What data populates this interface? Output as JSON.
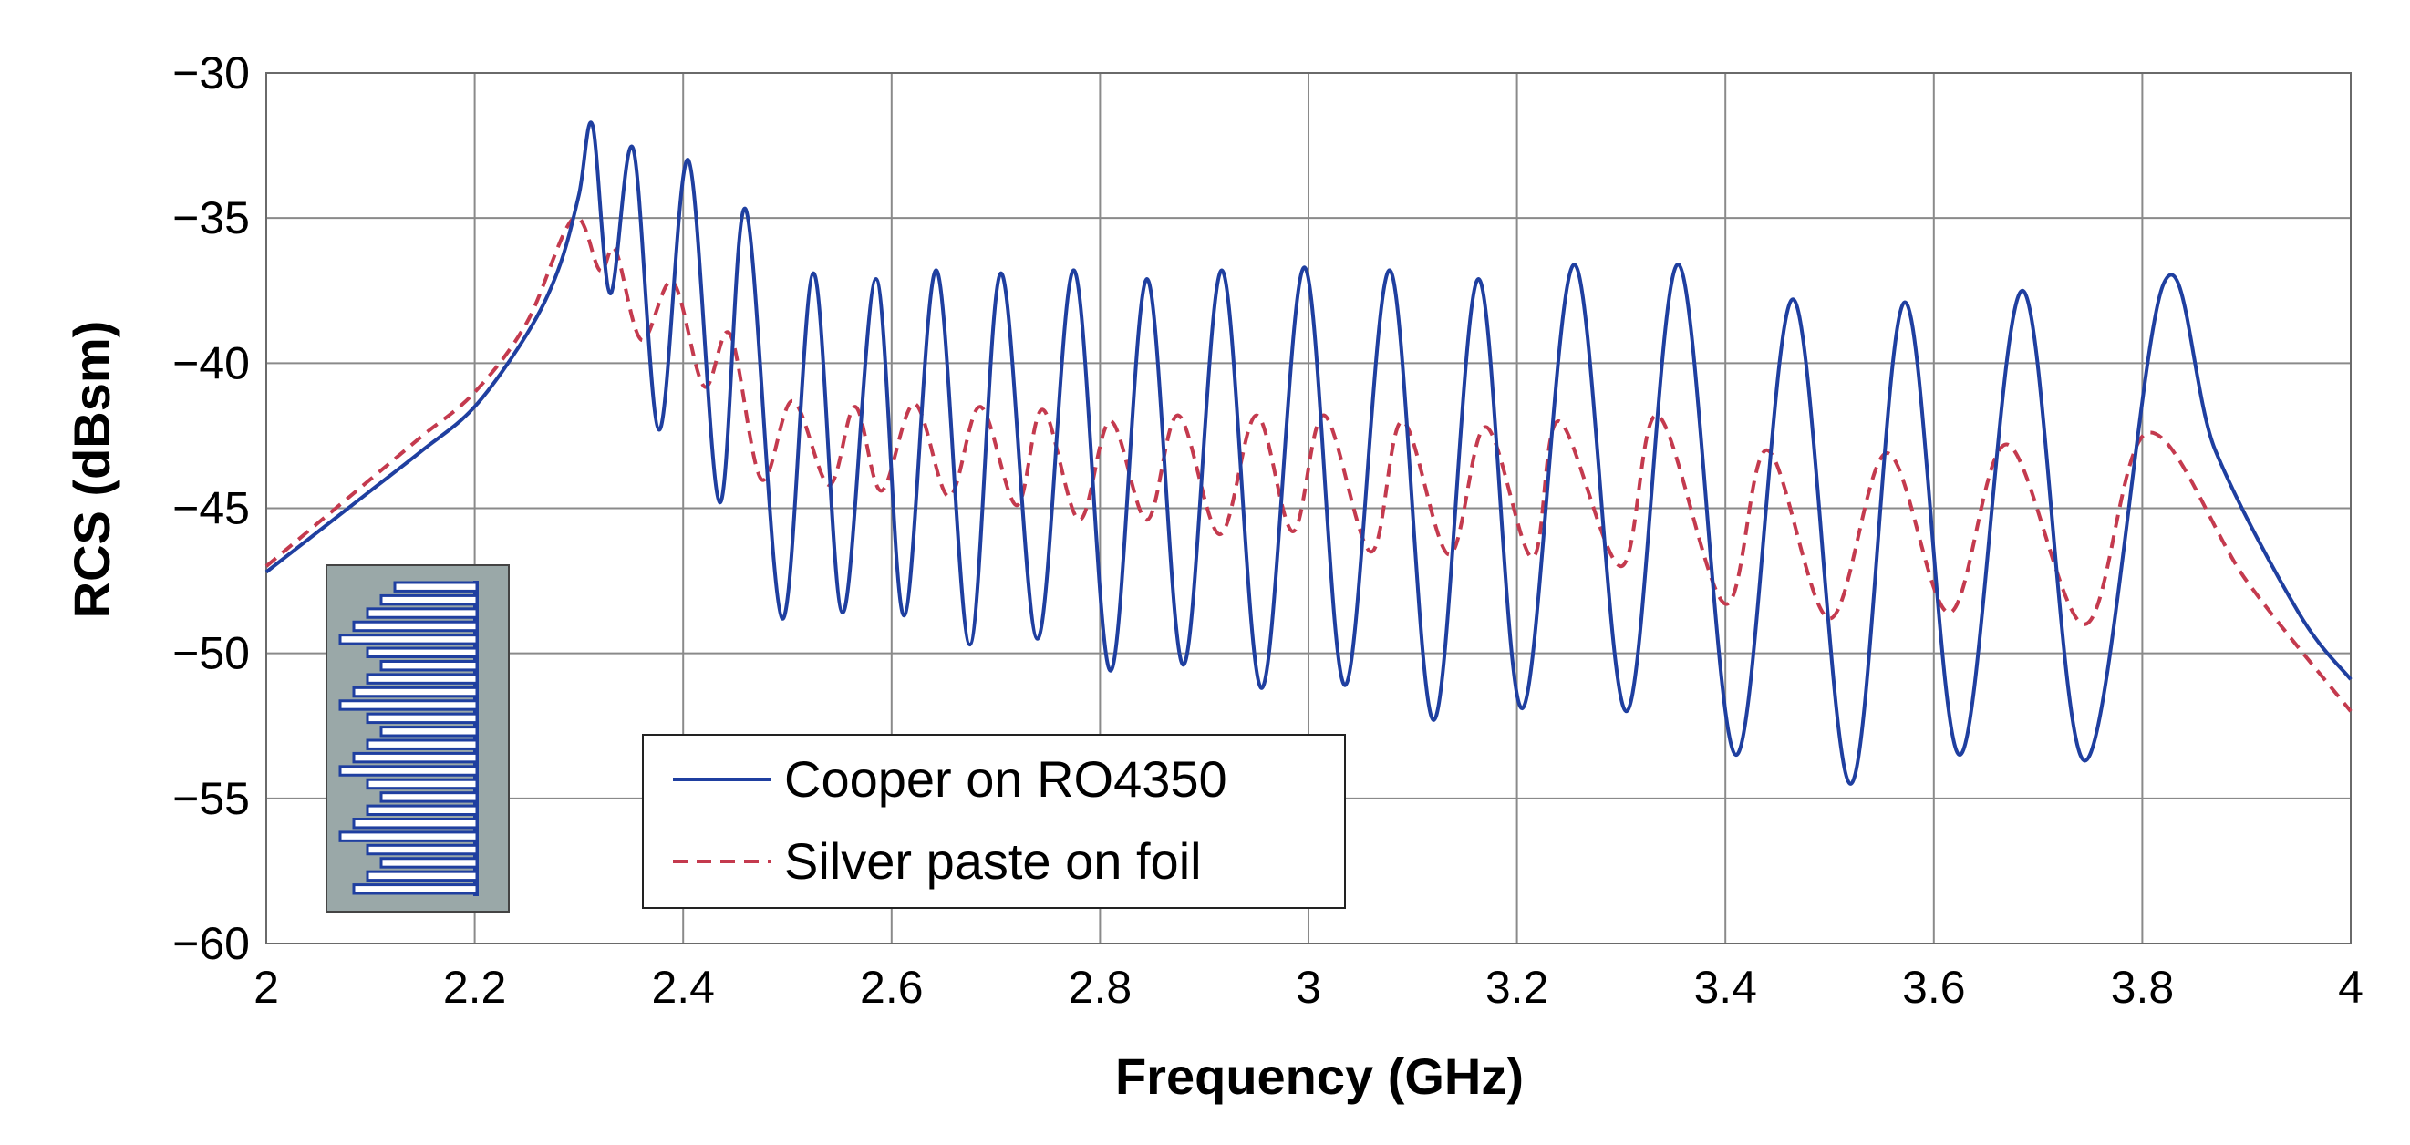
{
  "chart_data": {
    "type": "line",
    "title": "",
    "xlabel": "Frequency (GHz)",
    "ylabel": "RCS (dBsm)",
    "xlim": [
      2,
      4
    ],
    "ylim": [
      -60,
      -30
    ],
    "grid": true,
    "legend_position": "bottom-center",
    "x_ticks": [
      2,
      2.2,
      2.4,
      2.6,
      2.8,
      3,
      3.2,
      3.4,
      3.6,
      3.8,
      4
    ],
    "x_tick_labels": [
      "2",
      "2.2",
      "2.4",
      "2.6",
      "2.8",
      "3",
      "3.2",
      "3.4",
      "3.6",
      "3.8",
      "4"
    ],
    "y_ticks": [
      -30,
      -35,
      -40,
      -45,
      -50,
      -55,
      -60
    ],
    "y_tick_labels": [
      "−30",
      "−35",
      "−40",
      "−45",
      "−50",
      "−55",
      "−60"
    ],
    "series": [
      {
        "name": "Cooper on RO4350",
        "color": "#1f3fa0",
        "style": "solid",
        "points": [
          [
            2.0,
            -47.2
          ],
          [
            2.05,
            -45.8
          ],
          [
            2.1,
            -44.4
          ],
          [
            2.15,
            -43.0
          ],
          [
            2.2,
            -41.5
          ],
          [
            2.25,
            -39.0
          ],
          [
            2.28,
            -36.8
          ],
          [
            2.3,
            -34.2
          ],
          [
            2.313,
            -31.8
          ],
          [
            2.33,
            -37.6
          ],
          [
            2.352,
            -32.6
          ],
          [
            2.377,
            -42.3
          ],
          [
            2.405,
            -33.0
          ],
          [
            2.435,
            -44.8
          ],
          [
            2.46,
            -34.7
          ],
          [
            2.495,
            -48.8
          ],
          [
            2.525,
            -36.9
          ],
          [
            2.553,
            -48.6
          ],
          [
            2.585,
            -37.1
          ],
          [
            2.612,
            -48.7
          ],
          [
            2.643,
            -36.8
          ],
          [
            2.675,
            -49.7
          ],
          [
            2.705,
            -36.9
          ],
          [
            2.74,
            -49.5
          ],
          [
            2.775,
            -36.8
          ],
          [
            2.81,
            -50.6
          ],
          [
            2.845,
            -37.1
          ],
          [
            2.88,
            -50.4
          ],
          [
            2.917,
            -36.8
          ],
          [
            2.955,
            -51.2
          ],
          [
            2.996,
            -36.7
          ],
          [
            3.035,
            -51.1
          ],
          [
            3.078,
            -36.8
          ],
          [
            3.12,
            -52.3
          ],
          [
            3.163,
            -37.1
          ],
          [
            3.205,
            -51.9
          ],
          [
            3.255,
            -36.6
          ],
          [
            3.305,
            -52.0
          ],
          [
            3.355,
            -36.6
          ],
          [
            3.41,
            -53.5
          ],
          [
            3.465,
            -37.8
          ],
          [
            3.52,
            -54.5
          ],
          [
            3.572,
            -37.9
          ],
          [
            3.625,
            -53.5
          ],
          [
            3.685,
            -37.5
          ],
          [
            3.745,
            -53.7
          ],
          [
            3.82,
            -37.3
          ],
          [
            3.87,
            -43.0
          ],
          [
            3.95,
            -48.6
          ],
          [
            4.0,
            -50.9
          ]
        ]
      },
      {
        "name": "Silver paste on foil",
        "color": "#c43a4e",
        "style": "dashed",
        "points": [
          [
            2.0,
            -47.0
          ],
          [
            2.05,
            -45.5
          ],
          [
            2.1,
            -44.0
          ],
          [
            2.15,
            -42.5
          ],
          [
            2.2,
            -41.0
          ],
          [
            2.25,
            -38.6
          ],
          [
            2.295,
            -35.0
          ],
          [
            2.32,
            -36.8
          ],
          [
            2.335,
            -36.1
          ],
          [
            2.36,
            -39.2
          ],
          [
            2.39,
            -37.2
          ],
          [
            2.42,
            -40.8
          ],
          [
            2.445,
            -39.0
          ],
          [
            2.475,
            -44.0
          ],
          [
            2.505,
            -41.3
          ],
          [
            2.54,
            -44.2
          ],
          [
            2.565,
            -41.5
          ],
          [
            2.59,
            -44.4
          ],
          [
            2.622,
            -41.4
          ],
          [
            2.655,
            -44.6
          ],
          [
            2.685,
            -41.5
          ],
          [
            2.72,
            -44.9
          ],
          [
            2.745,
            -41.6
          ],
          [
            2.78,
            -45.4
          ],
          [
            2.81,
            -42.0
          ],
          [
            2.845,
            -45.4
          ],
          [
            2.875,
            -41.8
          ],
          [
            2.915,
            -45.9
          ],
          [
            2.95,
            -41.8
          ],
          [
            2.985,
            -45.8
          ],
          [
            3.015,
            -41.8
          ],
          [
            3.06,
            -46.5
          ],
          [
            3.09,
            -42.0
          ],
          [
            3.135,
            -46.6
          ],
          [
            3.17,
            -42.2
          ],
          [
            3.215,
            -46.7
          ],
          [
            3.24,
            -42.0
          ],
          [
            3.3,
            -47.0
          ],
          [
            3.335,
            -41.8
          ],
          [
            3.4,
            -48.3
          ],
          [
            3.44,
            -43.0
          ],
          [
            3.5,
            -48.8
          ],
          [
            3.555,
            -43.1
          ],
          [
            3.615,
            -48.6
          ],
          [
            3.67,
            -42.8
          ],
          [
            3.745,
            -49.0
          ],
          [
            3.805,
            -42.4
          ],
          [
            3.9,
            -47.5
          ],
          [
            4.0,
            -52.0
          ]
        ]
      }
    ],
    "inset": {
      "description_icon": "meander-tag-inset",
      "bg_color": "#9aa8a8",
      "stripe_color": "#1f3fa0"
    }
  }
}
